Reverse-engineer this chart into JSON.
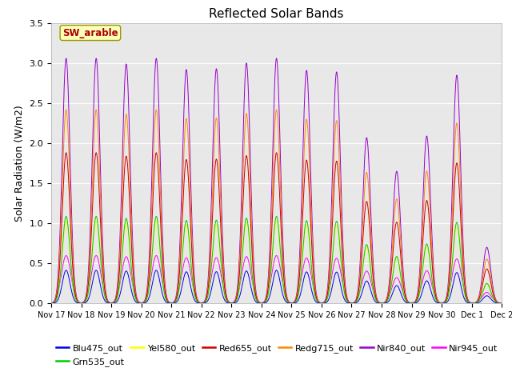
{
  "title": "Reflected Solar Bands",
  "ylabel": "Solar Radiation (W/m2)",
  "annotation": "SW_arable",
  "ylim": [
    0,
    3.5
  ],
  "background_color": "#e8e8e8",
  "series": [
    {
      "label": "Blu475_out",
      "color": "#0000ee",
      "scale": 0.135
    },
    {
      "label": "Grn535_out",
      "color": "#00cc00",
      "scale": 0.355
    },
    {
      "label": "Yel580_out",
      "color": "#ffff00",
      "scale": 0.335
    },
    {
      "label": "Red655_out",
      "color": "#cc0000",
      "scale": 0.615
    },
    {
      "label": "Redg715_out",
      "color": "#ff8800",
      "scale": 0.79
    },
    {
      "label": "Nir840_out",
      "color": "#9900cc",
      "scale": 1.0
    },
    {
      "label": "Nir945_out",
      "color": "#ff00ff",
      "scale": 0.195
    }
  ],
  "peak_heights": [
    3.06,
    3.06,
    2.99,
    3.06,
    2.92,
    2.93,
    3.0,
    3.06,
    2.91,
    2.89,
    2.07,
    1.65,
    2.09,
    2.85,
    0.7
  ],
  "x_tick_labels": [
    "Nov 17",
    "Nov 18",
    "Nov 19",
    "Nov 20",
    "Nov 21",
    "Nov 22",
    "Nov 23",
    "Nov 24",
    "Nov 25",
    "Nov 26",
    "Nov 27",
    "Nov 28",
    "Nov 29",
    "Nov 30",
    "Dec 1",
    "Dec 2"
  ],
  "legend_fontsize": 8,
  "title_fontsize": 11,
  "ylabel_fontsize": 9,
  "tick_fontsize": 7
}
